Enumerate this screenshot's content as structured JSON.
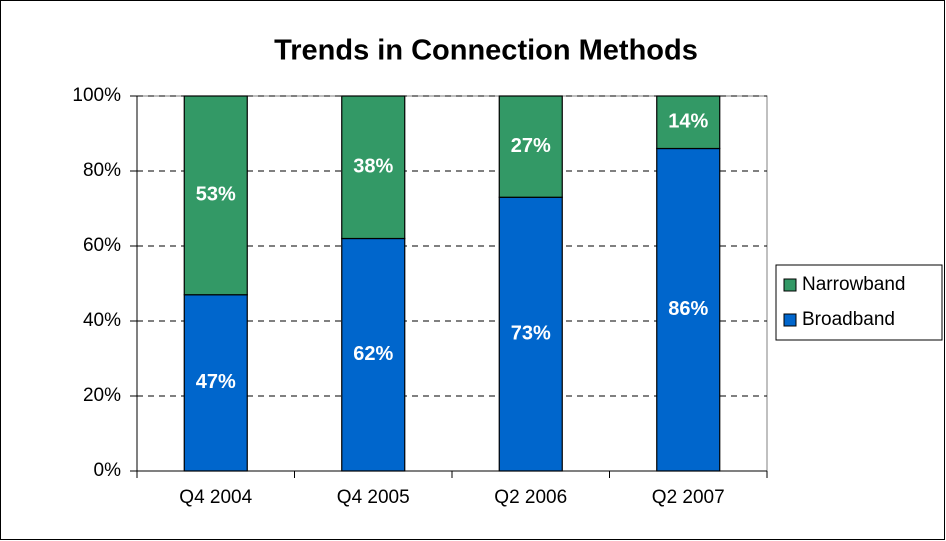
{
  "chart_data": {
    "type": "stacked_bar",
    "title": "Trends in Connection Methods",
    "categories": [
      "Q4 2004",
      "Q4 2005",
      "Q2 2006",
      "Q2 2007"
    ],
    "series": [
      {
        "name": "Broadband",
        "color": "#0066cc",
        "values": [
          47,
          62,
          73,
          86
        ],
        "value_labels": [
          "47%",
          "62%",
          "73%",
          "86%"
        ]
      },
      {
        "name": "Narrowband",
        "color": "#339966",
        "values": [
          53,
          38,
          27,
          14
        ],
        "value_labels": [
          "53%",
          "38%",
          "27%",
          "14%"
        ]
      }
    ],
    "ylim": [
      0,
      100
    ],
    "yticks": [
      {
        "value": 0,
        "label": "0%"
      },
      {
        "value": 20,
        "label": "20%"
      },
      {
        "value": 40,
        "label": "40%"
      },
      {
        "value": 60,
        "label": "60%"
      },
      {
        "value": 80,
        "label": "80%"
      },
      {
        "value": 100,
        "label": "100%"
      }
    ],
    "grid": true,
    "legend": "right"
  }
}
